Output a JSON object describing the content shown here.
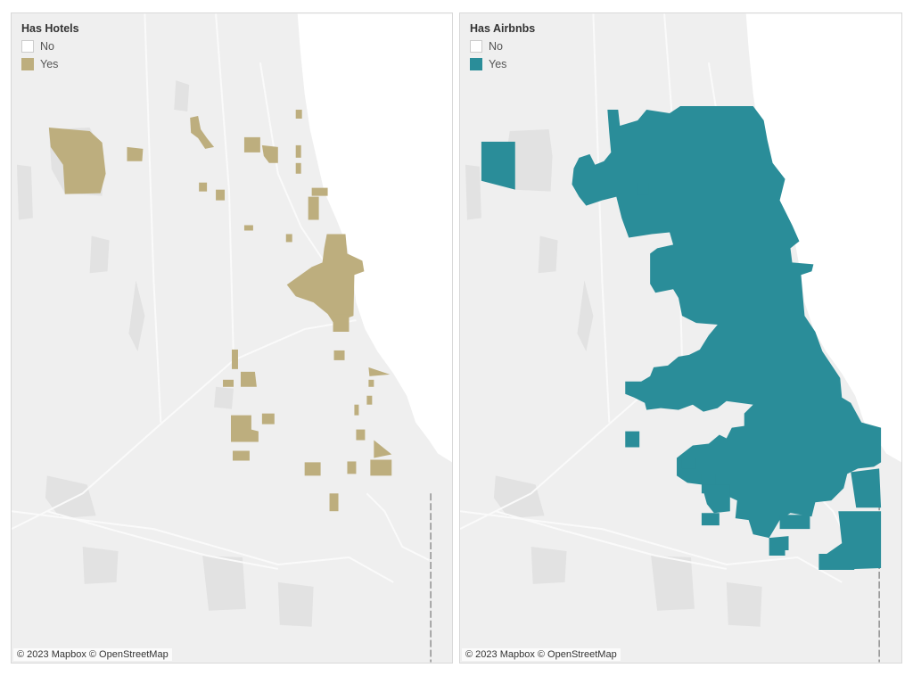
{
  "colors": {
    "map_background": "#efefef",
    "water": "#ffffff",
    "parks": "#e2e2e2",
    "roads": "#fafafa",
    "no_fill": "#ffffff",
    "hotels_yes": "#bdae7e",
    "airbnbs_yes": "#2a8d99"
  },
  "panels": {
    "hotels": {
      "legend_title": "Has Hotels",
      "legend_items": [
        {
          "label": "No",
          "color": "#ffffff"
        },
        {
          "label": "Yes",
          "color": "#bdae7e"
        }
      ],
      "attribution": "© 2023 Mapbox © OpenStreetMap"
    },
    "airbnbs": {
      "legend_title": "Has Airbnbs",
      "legend_items": [
        {
          "label": "No",
          "color": "#ffffff"
        },
        {
          "label": "Yes",
          "color": "#2a8d99"
        }
      ],
      "attribution": "© 2023 Mapbox © OpenStreetMap"
    }
  }
}
